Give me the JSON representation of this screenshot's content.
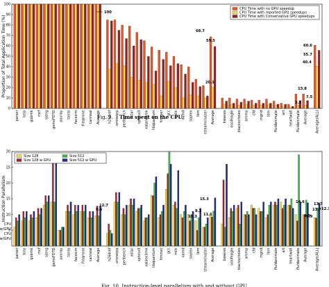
{
  "colors": {
    "cpu": "#e8572a",
    "reported": "#f2dd55",
    "conservative": "#9c1f1f",
    "size128": "#f2dd55",
    "size128gpu": "#a5262a",
    "size512": "#45b84c",
    "size512gpu": "#1d2c88"
  },
  "chart_data": [
    {
      "type": "bar",
      "ylabel": "Proportion of Total Application Time (%)",
      "ylim": [
        0,
        100
      ],
      "yticks": [
        0,
        10,
        20,
        30,
        40,
        50,
        60,
        70,
        80,
        90,
        100
      ],
      "caption_prefix": "Fig. 9.",
      "caption_title": "Time spent on the CPU.",
      "legend": [
        "CPU Time with no GPU speedup",
        "CPU Time with reported GPU speedups",
        "CPU Time with Conservative GPU speedups"
      ],
      "groups": [
        {
          "categories": [
            "parser",
            "bzip",
            "gobmk",
            "mcf",
            "sjeng",
            "gemsFDTD",
            "povray",
            "tonto",
            "facesim",
            "freqmine",
            "canneal",
            "Average"
          ],
          "values": [
            [
              100,
              100,
              100
            ],
            [
              100,
              100,
              100
            ],
            [
              100,
              100,
              100
            ],
            [
              100,
              100,
              100
            ],
            [
              100,
              100,
              100
            ],
            [
              100,
              100,
              100
            ],
            [
              100,
              100,
              100
            ],
            [
              100,
              100,
              100
            ],
            [
              100,
              100,
              100
            ],
            [
              100,
              100,
              100
            ],
            [
              100,
              100,
              100
            ],
            [
              100,
              100,
              100
            ]
          ]
        },
        {
          "categories": [
            "h264ref",
            "omnetpp",
            "perlbench",
            "astar",
            "sphinx3",
            "xalancbmk",
            "libquantum",
            "hmmer",
            "gcc",
            "milc",
            "namd",
            "soplex",
            "lbm",
            "streamcluster",
            "Average"
          ],
          "values": [
            [
              85,
              38,
              84
            ],
            [
              85,
              43,
              75
            ],
            [
              80,
              41,
              67
            ],
            [
              79,
              30,
              60
            ],
            [
              73,
              27,
              66
            ],
            [
              65,
              25,
              50
            ],
            [
              59,
              23,
              36
            ],
            [
              56,
              12,
              47
            ],
            [
              54,
              26,
              41
            ],
            [
              50,
              20,
              43
            ],
            [
              42,
              10,
              33
            ],
            [
              40,
              13,
              25
            ],
            [
              28,
              12,
              21
            ],
            [
              22,
              10,
              12
            ],
            [
              68.7,
              20.1,
              59.5
            ]
          ],
          "labels": {
            "reported": "68.7",
            "cpu": "20.1",
            "conservative": "59.5"
          }
        },
        {
          "categories": [
            "bwaves",
            "ossifeagle",
            "blackscholes",
            "ammp",
            "cfd",
            "mgrid",
            "lbm",
            "fluidanimate",
            "art",
            "heartwall",
            "fluidanimate",
            "Average"
          ],
          "values": [
            [
              10,
              4,
              7
            ],
            [
              10,
              4,
              5
            ],
            [
              9,
              3,
              6
            ],
            [
              9,
              4,
              7
            ],
            [
              8,
              3,
              5
            ],
            [
              8,
              3,
              5
            ],
            [
              9,
              4,
              5
            ],
            [
              7,
              3,
              4
            ],
            [
              5,
              2,
              4
            ],
            [
              4,
              1,
              2
            ],
            [
              13.8,
              3.1,
              7.5
            ],
            [
              13.8,
              3.1,
              7.5
            ]
          ],
          "labels": {
            "reported": "13.8",
            "cpu": "3.1",
            "conservative": "7.5"
          }
        },
        {
          "categories": [
            "Average(ALL)"
          ],
          "values": [
            [
              60.6,
              40.4,
              55.7
            ]
          ],
          "labels": {
            "reported": "60.6",
            "cpu": "40.4",
            "conservative": "55.7"
          }
        }
      ],
      "top_label": "100"
    },
    {
      "type": "bar",
      "ylabel": "Instruction Parallelism",
      "ylim": [
        0,
        30
      ],
      "yticks": [
        5,
        10,
        15,
        20,
        25,
        30
      ],
      "ytick_text": [
        "CPU",
        "w/GPU",
        "CPU",
        "w/GPU"
      ],
      "legend": [
        "Size 128",
        "Size 128 w GPU",
        "Size 512",
        "Size 512 w GPU"
      ],
      "caption": "Fig. 10.   Instruction-level parallelism with and without GPU.",
      "groups": [
        {
          "categories": [
            "parser",
            "bzip",
            "gobmk",
            "mcf",
            "sjeng",
            "gemsFDTD",
            "povray",
            "tonto",
            "facesim",
            "freqmine",
            "canneal",
            "Average"
          ],
          "values": [
            [
              6,
              9,
              8,
              10
            ],
            [
              8,
              11,
              9,
              11
            ],
            [
              8,
              10,
              9,
              11
            ],
            [
              9,
              12,
              10,
              12
            ],
            [
              13,
              16,
              14,
              16
            ],
            [
              14,
              28,
              14,
              28
            ],
            [
              5,
              5,
              6,
              6
            ],
            [
              11,
              13,
              11,
              14
            ],
            [
              10,
              13,
              11,
              13
            ],
            [
              11,
              13,
              11,
              13
            ],
            [
              9,
              11,
              9,
              11
            ],
            [
              9.6,
              12.7,
              9.6,
              12.7
            ]
          ],
          "labels": {
            "a": "9.6",
            "b": "12.7"
          }
        },
        {
          "categories": [
            "h264ref",
            "omnetpp",
            "perlbench",
            "astar",
            "sphinx3",
            "xalancbmk",
            "libquantum",
            "hmmer",
            "gcc",
            "milc",
            "namd",
            "soplex",
            "lbm",
            "streamcluster",
            "Average"
          ],
          "values": [
            [
              4,
              7,
              5,
              4
            ],
            [
              14,
              17,
              14,
              17
            ],
            [
              10,
              12,
              10,
              13
            ],
            [
              13,
              15,
              13,
              15
            ],
            [
              11,
              12,
              12,
              13
            ],
            [
              8,
              9,
              9,
              10
            ],
            [
              16,
              16,
              20,
              22
            ],
            [
              9,
              10,
              11,
              13
            ],
            [
              18,
              23,
              31,
              26
            ],
            [
              13,
              14,
              12,
              24
            ],
            [
              10,
              9,
              11,
              13
            ],
            [
              10,
              8,
              10,
              11
            ],
            [
              8,
              5,
              9,
              12
            ],
            [
              6,
              6,
              7,
              9
            ],
            [
              10.3,
              9.2,
              11.1,
              15.3
            ]
          ],
          "labels": {
            "a": "10.3",
            "b": "9.2",
            "c": "11.1",
            "d": "15.3"
          }
        },
        {
          "categories": [
            "bwaves",
            "ossifeagle",
            "blackscholes",
            "ammp",
            "cfd",
            "mgrid",
            "lbm",
            "fluidanimate",
            "art",
            "heartwall",
            "fluidanimate",
            "Average"
          ],
          "values": [
            [
              7,
              21,
              6,
              26
            ],
            [
              9,
              12,
              11,
              13
            ],
            [
              12,
              13,
              7,
              14
            ],
            [
              10,
              10,
              11,
              10
            ],
            [
              13,
              12,
              12,
              10
            ],
            [
              12,
              11,
              11,
              14
            ],
            [
              9,
              10,
              13,
              14
            ],
            [
              13,
              14,
              13,
              15
            ],
            [
              14,
              12,
              13,
              15
            ],
            [
              13,
              13,
              15,
              12
            ],
            [
              10,
              8,
              29,
              14
            ],
            [
              10,
              9.9,
              14.6,
              13.7
            ]
          ],
          "labels": {
            "a": "9.9",
            "b": "14.6",
            "c": "13.7"
          }
        },
        {
          "categories": [
            "Average(ALL)"
          ],
          "values": [
            [
              9,
              8.9,
              12.1,
              13.7
            ]
          ],
          "labels": {
            "a": "8.9",
            "b": "12.1",
            "c": "13.7"
          }
        }
      ]
    }
  ]
}
